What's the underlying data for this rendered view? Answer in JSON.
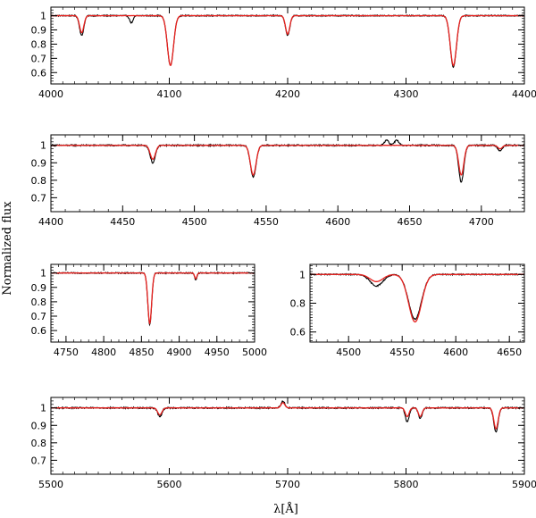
{
  "figure": {
    "ylabel": "Normalized flux",
    "xlabel": "λ[Å]",
    "colors": {
      "observed": "#000000",
      "model": "#e8211e",
      "axes": "#000000"
    }
  },
  "chart_data": [
    {
      "type": "line",
      "xlim": [
        4000,
        4400
      ],
      "ylim": [
        0.52,
        1.06
      ],
      "xticks": [
        4000,
        4100,
        4200,
        4300,
        4400
      ],
      "yticks": [
        0.6,
        0.7,
        0.8,
        0.9,
        1
      ],
      "continuum": 1.0,
      "series": [
        {
          "role": "observed",
          "color": "#000000",
          "lines": [
            {
              "center": 4026,
              "depth": 0.14,
              "width": 1.8
            },
            {
              "center": 4068,
              "depth": 0.05,
              "width": 1.5
            },
            {
              "center": 4101,
              "depth": 0.35,
              "width": 2.6
            },
            {
              "center": 4200,
              "depth": 0.14,
              "width": 1.8
            },
            {
              "center": 4340,
              "depth": 0.36,
              "width": 2.6
            }
          ]
        },
        {
          "role": "model",
          "color": "#e8211e",
          "lines": [
            {
              "center": 4026,
              "depth": 0.12,
              "width": 1.8
            },
            {
              "center": 4101,
              "depth": 0.35,
              "width": 2.6
            },
            {
              "center": 4200,
              "depth": 0.13,
              "width": 1.8
            },
            {
              "center": 4340,
              "depth": 0.35,
              "width": 2.6
            }
          ]
        }
      ]
    },
    {
      "type": "line",
      "xlim": [
        4400,
        4730
      ],
      "ylim": [
        0.62,
        1.06
      ],
      "xticks": [
        4400,
        4450,
        4500,
        4550,
        4600,
        4650,
        4700
      ],
      "yticks": [
        0.7,
        0.8,
        0.9,
        1
      ],
      "continuum": 1.0,
      "series": [
        {
          "role": "observed",
          "color": "#000000",
          "lines": [
            {
              "center": 4471,
              "depth": 0.1,
              "width": 1.8
            },
            {
              "center": 4541,
              "depth": 0.18,
              "width": 2.0
            },
            {
              "center": 4634,
              "depth": -0.03,
              "width": 1.5
            },
            {
              "center": 4641,
              "depth": -0.03,
              "width": 1.5
            },
            {
              "center": 4686,
              "depth": 0.21,
              "width": 1.8
            },
            {
              "center": 4713,
              "depth": 0.03,
              "width": 1.5
            }
          ]
        },
        {
          "role": "model",
          "color": "#e8211e",
          "lines": [
            {
              "center": 4471,
              "depth": 0.08,
              "width": 1.8
            },
            {
              "center": 4541,
              "depth": 0.17,
              "width": 2.0
            },
            {
              "center": 4686,
              "depth": 0.17,
              "width": 1.8
            },
            {
              "center": 4713,
              "depth": 0.02,
              "width": 1.5
            }
          ]
        }
      ]
    },
    {
      "type": "line",
      "xlim": [
        4730,
        5000
      ],
      "ylim": [
        0.52,
        1.06
      ],
      "xticks": [
        4750,
        4800,
        4850,
        4900,
        4950,
        5000
      ],
      "yticks": [
        0.6,
        0.7,
        0.8,
        0.9,
        1
      ],
      "continuum": 1.0,
      "series": [
        {
          "role": "observed",
          "color": "#000000",
          "lines": [
            {
              "center": 4861,
              "depth": 0.36,
              "width": 2.5
            },
            {
              "center": 4922,
              "depth": 0.05,
              "width": 1.5
            }
          ]
        },
        {
          "role": "model",
          "color": "#e8211e",
          "lines": [
            {
              "center": 4861,
              "depth": 0.35,
              "width": 2.5
            },
            {
              "center": 4922,
              "depth": 0.04,
              "width": 1.5
            }
          ]
        }
      ]
    },
    {
      "type": "line",
      "xlim": [
        4464,
        4664
      ],
      "ylim": [
        0.53,
        1.07
      ],
      "xticks": [
        4500,
        4550,
        4600,
        4650
      ],
      "yticks": [
        0.6,
        0.8,
        1
      ],
      "continuum": 1.0,
      "series": [
        {
          "role": "observed",
          "color": "#000000",
          "lines": [
            {
              "center": 4526,
              "depth": 0.08,
              "width": 6
            },
            {
              "center": 4562,
              "depth": 0.31,
              "width": 6
            }
          ]
        },
        {
          "role": "model",
          "color": "#e8211e",
          "lines": [
            {
              "center": 4526,
              "depth": 0.05,
              "width": 6
            },
            {
              "center": 4562,
              "depth": 0.33,
              "width": 6
            }
          ]
        }
      ]
    },
    {
      "type": "line",
      "xlim": [
        5500,
        5900
      ],
      "ylim": [
        0.62,
        1.06
      ],
      "xticks": [
        5500,
        5600,
        5700,
        5800,
        5900
      ],
      "yticks": [
        0.7,
        0.8,
        0.9,
        1
      ],
      "continuum": 1.0,
      "series": [
        {
          "role": "observed",
          "color": "#000000",
          "lines": [
            {
              "center": 5592,
              "depth": 0.05,
              "width": 1.8
            },
            {
              "center": 5696,
              "depth": -0.04,
              "width": 1.6
            },
            {
              "center": 5801,
              "depth": 0.08,
              "width": 1.6
            },
            {
              "center": 5812,
              "depth": 0.06,
              "width": 1.6
            },
            {
              "center": 5876,
              "depth": 0.14,
              "width": 1.8
            }
          ]
        },
        {
          "role": "model",
          "color": "#e8211e",
          "lines": [
            {
              "center": 5592,
              "depth": 0.04,
              "width": 1.8
            },
            {
              "center": 5696,
              "depth": -0.03,
              "width": 1.6
            },
            {
              "center": 5801,
              "depth": 0.05,
              "width": 1.6
            },
            {
              "center": 5812,
              "depth": 0.05,
              "width": 1.6
            },
            {
              "center": 5876,
              "depth": 0.12,
              "width": 1.8
            }
          ]
        }
      ]
    }
  ]
}
